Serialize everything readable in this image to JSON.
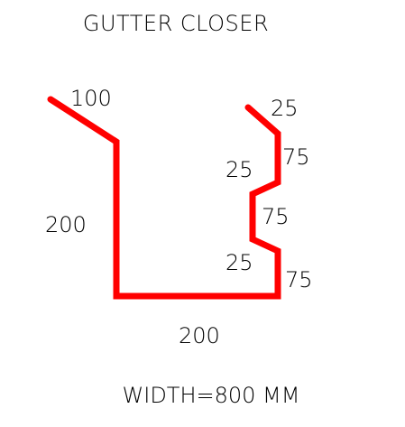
{
  "title": "GUTTER CLOSER",
  "footer": "WIDTH=800 MM",
  "colors": {
    "profile": "#ff0000",
    "text": "#000000",
    "background": "#ffffff"
  },
  "dimensions": {
    "left_lip": "100",
    "left_wall": "200",
    "base": "200",
    "top_right_lip": "25",
    "right_upper": "75",
    "step_upper": "25",
    "right_middle": "75",
    "step_lower": "25",
    "right_lower": "75"
  }
}
